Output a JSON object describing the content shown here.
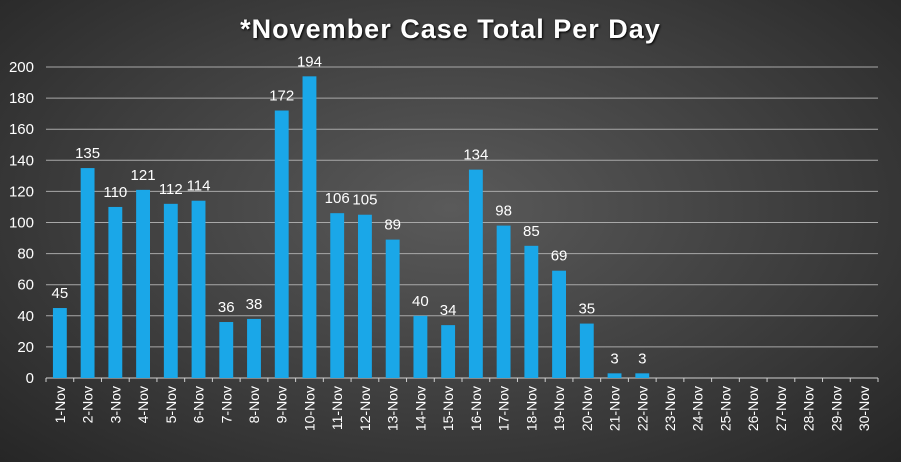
{
  "chart_data": {
    "type": "bar",
    "title": "*November Case Total Per Day",
    "xlabel": "",
    "ylabel": "",
    "ylim": [
      0,
      200
    ],
    "yticks": [
      0,
      20,
      40,
      60,
      80,
      100,
      120,
      140,
      160,
      180,
      200
    ],
    "grid": true,
    "legend": "none",
    "bar_color": "#1aa7e8",
    "categories": [
      "1-Nov",
      "2-Nov",
      "3-Nov",
      "4-Nov",
      "5-Nov",
      "6-Nov",
      "7-Nov",
      "8-Nov",
      "9-Nov",
      "10-Nov",
      "11-Nov",
      "12-Nov",
      "13-Nov",
      "14-Nov",
      "15-Nov",
      "16-Nov",
      "17-Nov",
      "18-Nov",
      "19-Nov",
      "20-Nov",
      "21-Nov",
      "22-Nov",
      "23-Nov",
      "24-Nov",
      "25-Nov",
      "26-Nov",
      "27-Nov",
      "28-Nov",
      "29-Nov",
      "30-Nov"
    ],
    "values": [
      45,
      135,
      110,
      121,
      112,
      114,
      36,
      38,
      172,
      194,
      106,
      105,
      89,
      40,
      34,
      134,
      98,
      85,
      69,
      35,
      3,
      3,
      null,
      null,
      null,
      null,
      null,
      null,
      null,
      null
    ]
  }
}
